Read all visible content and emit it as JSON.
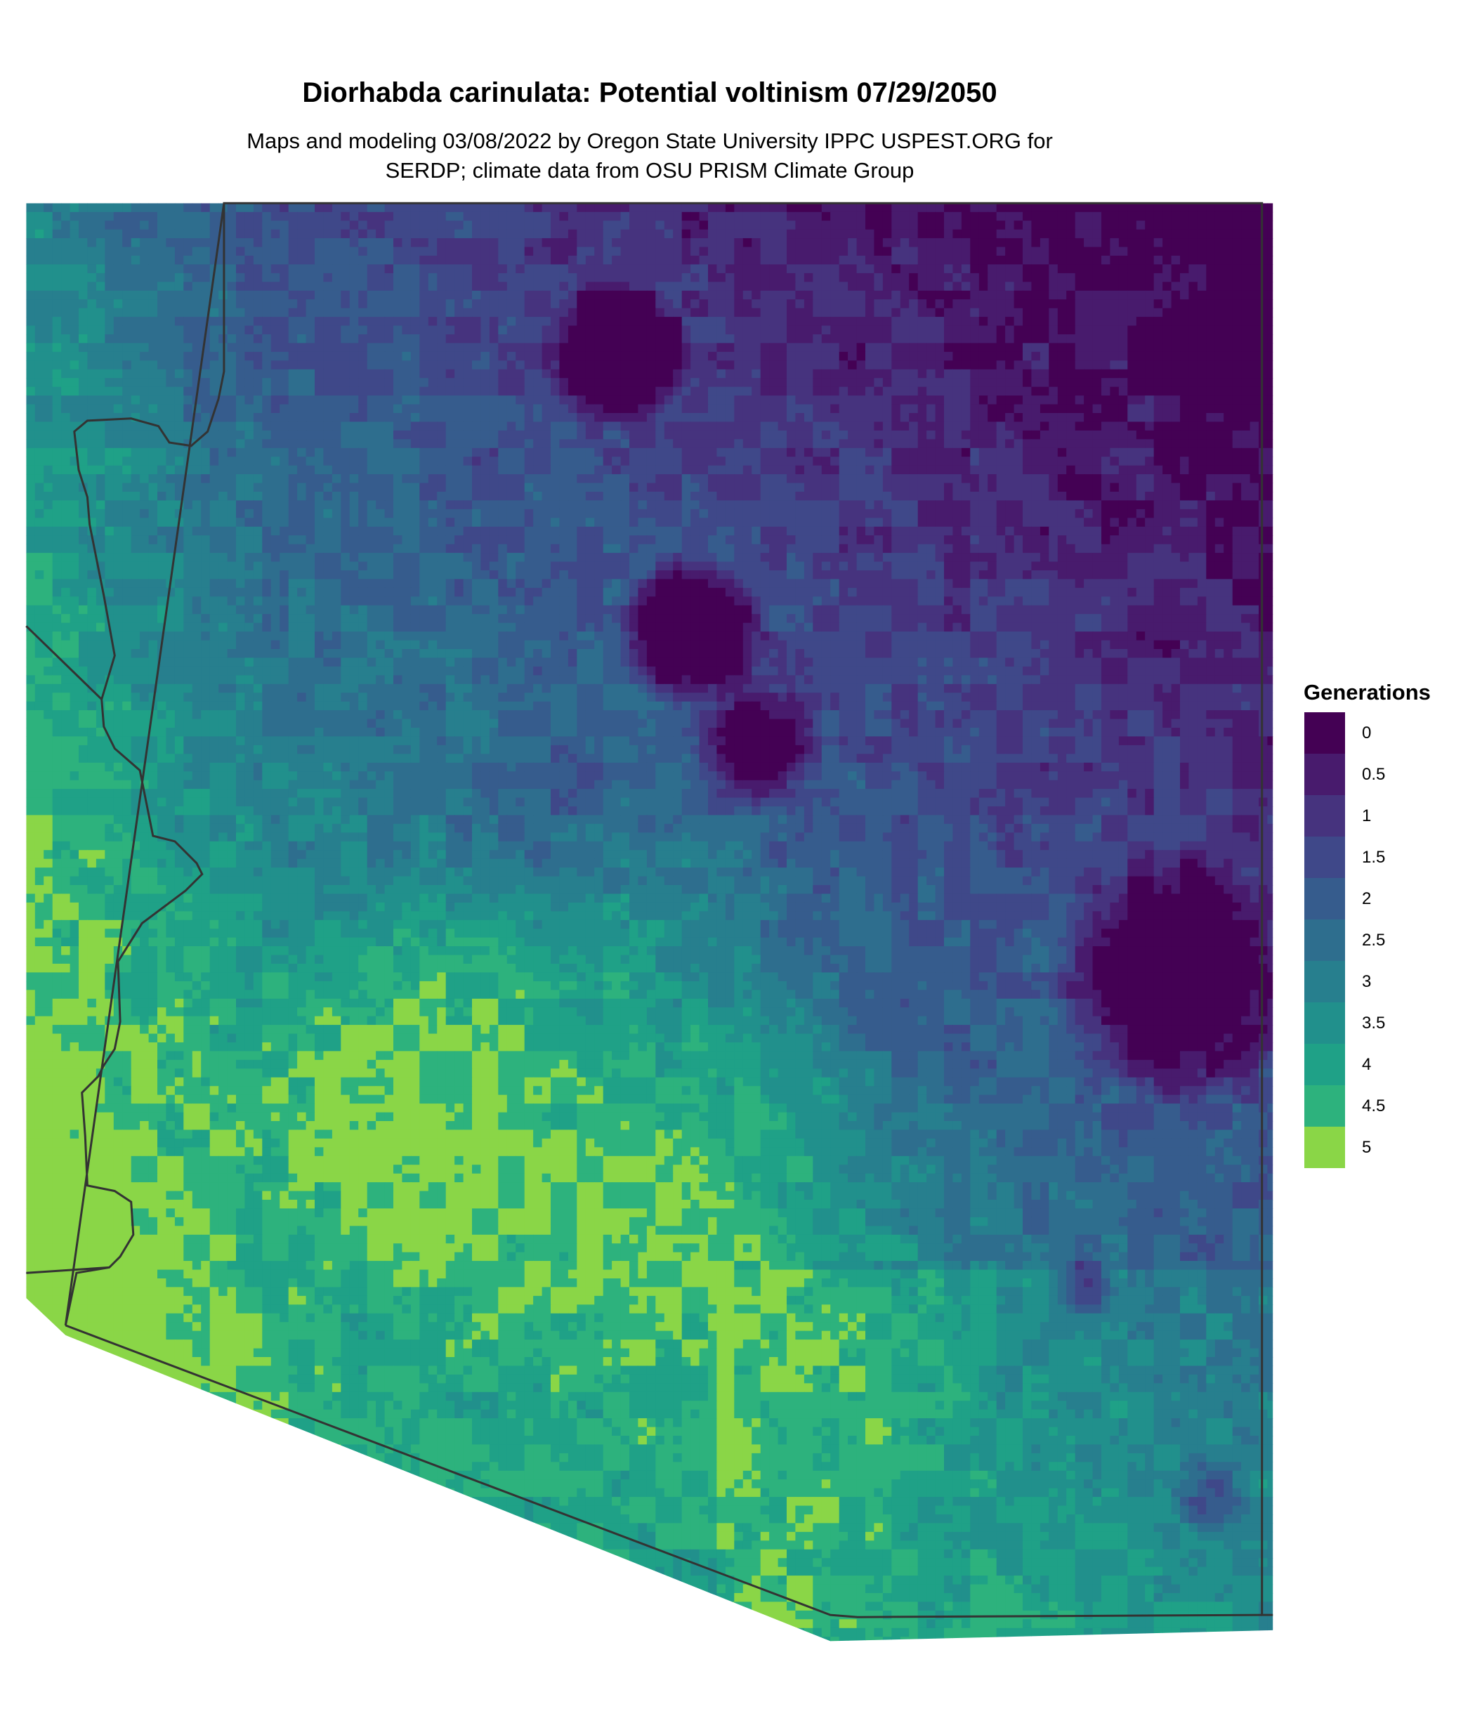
{
  "title": "Diorhabda carinulata: Potential voltinism 07/29/2050",
  "subtitle_line1": "Maps and modeling 03/08/2022 by Oregon State University IPPC USPEST.ORG for",
  "subtitle_line2": "SERDP; climate data from OSU PRISM Climate Group",
  "legend": {
    "title": "Generations",
    "items": [
      {
        "label": "0",
        "color": "#440154"
      },
      {
        "label": "0.5",
        "color": "#481B6D"
      },
      {
        "label": "1",
        "color": "#46337E"
      },
      {
        "label": "1.5",
        "color": "#3F4889"
      },
      {
        "label": "2",
        "color": "#365C8D"
      },
      {
        "label": "2.5",
        "color": "#2E6E8E"
      },
      {
        "label": "3",
        "color": "#277F8E"
      },
      {
        "label": "3.5",
        "color": "#21908C"
      },
      {
        "label": "4",
        "color": "#1FA187"
      },
      {
        "label": "4.5",
        "color": "#2DB27D"
      },
      {
        "label": "5",
        "color": "#8AD647"
      }
    ]
  },
  "chart_data": {
    "type": "heatmap",
    "title": "Diorhabda carinulata: Potential voltinism 07/29/2050",
    "legend_title": "Generations",
    "scale": [
      0,
      0.5,
      1,
      1.5,
      2,
      2.5,
      3,
      3.5,
      4,
      4.5,
      5
    ],
    "legend_placement": "right",
    "border_color": "#333333"
  }
}
